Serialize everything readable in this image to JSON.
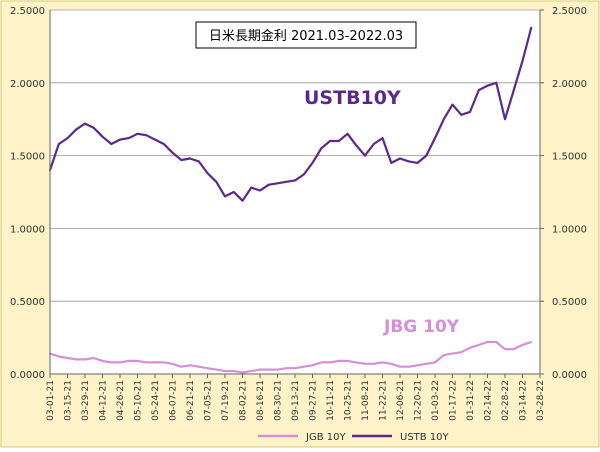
{
  "chart_data": {
    "type": "line",
    "title": "日米長期金利 2021.03-2022.03",
    "annotations": [
      {
        "text": "USTB10Y",
        "series": "USTB 10Y"
      },
      {
        "text": "JBG 10Y",
        "series": "JGB 10Y"
      }
    ],
    "ylim": [
      0,
      2.5
    ],
    "yticks": [
      "0.0000",
      "0.5000",
      "1.0000",
      "1.5000",
      "2.0000",
      "2.5000"
    ],
    "yticks_right": [
      "0.0000",
      "0.5000",
      "1.0000",
      "1.5000",
      "2.0000",
      "2.5000"
    ],
    "xticks": [
      "03-01-21",
      "03-15-21",
      "03-29-21",
      "04-12-21",
      "04-26-21",
      "05-10-21",
      "05-24-21",
      "06-07-21",
      "06-21-21",
      "07-05-21",
      "07-19-21",
      "08-02-21",
      "08-16-21",
      "08-30-21",
      "09-13-21",
      "09-27-21",
      "10-11-21",
      "10-25-21",
      "11-08-21",
      "11-22-21",
      "12-06-21",
      "12-20-21",
      "01-03-22",
      "01-17-22",
      "01-31-22",
      "02-14-22",
      "02-28-22",
      "03-14-22",
      "03-28-22"
    ],
    "grid": true,
    "legend": "bottom",
    "colors": {
      "plot_bg": "#ffffff",
      "frame_bg": "#fdf2c8",
      "frame_border": "#d9c96a",
      "grid": "#999999",
      "ust": "#5b2a86",
      "jgb": "#d48fd6"
    },
    "x": [
      "03-01-21",
      "03-08-21",
      "03-15-21",
      "03-22-21",
      "03-29-21",
      "04-05-21",
      "04-12-21",
      "04-19-21",
      "04-26-21",
      "05-03-21",
      "05-10-21",
      "05-17-21",
      "05-24-21",
      "05-31-21",
      "06-07-21",
      "06-14-21",
      "06-21-21",
      "06-28-21",
      "07-05-21",
      "07-12-21",
      "07-19-21",
      "07-26-21",
      "08-02-21",
      "08-09-21",
      "08-16-21",
      "08-23-21",
      "08-30-21",
      "09-06-21",
      "09-13-21",
      "09-20-21",
      "09-27-21",
      "10-04-21",
      "10-11-21",
      "10-18-21",
      "10-25-21",
      "11-01-21",
      "11-08-21",
      "11-15-21",
      "11-22-21",
      "11-29-21",
      "12-06-21",
      "12-13-21",
      "12-20-21",
      "12-27-21",
      "01-03-22",
      "01-10-22",
      "01-17-22",
      "01-24-22",
      "01-31-22",
      "02-07-22",
      "02-14-22",
      "02-21-22",
      "02-28-22",
      "03-07-22",
      "03-14-22",
      "03-21-22"
    ],
    "series": [
      {
        "name": "JGB 10Y",
        "color": "#d48fd6",
        "values": [
          0.14,
          0.12,
          0.11,
          0.1,
          0.1,
          0.11,
          0.09,
          0.08,
          0.08,
          0.09,
          0.09,
          0.08,
          0.08,
          0.08,
          0.07,
          0.05,
          0.06,
          0.05,
          0.04,
          0.03,
          0.02,
          0.02,
          0.01,
          0.02,
          0.03,
          0.03,
          0.03,
          0.04,
          0.04,
          0.05,
          0.06,
          0.08,
          0.08,
          0.09,
          0.09,
          0.08,
          0.07,
          0.07,
          0.08,
          0.07,
          0.05,
          0.05,
          0.06,
          0.07,
          0.08,
          0.13,
          0.14,
          0.15,
          0.18,
          0.2,
          0.22,
          0.22,
          0.17,
          0.17,
          0.2,
          0.22
        ]
      },
      {
        "name": "USTB 10Y",
        "color": "#5b2a86",
        "values": [
          1.4,
          1.58,
          1.62,
          1.68,
          1.72,
          1.69,
          1.63,
          1.58,
          1.61,
          1.62,
          1.65,
          1.64,
          1.61,
          1.58,
          1.52,
          1.47,
          1.48,
          1.46,
          1.38,
          1.32,
          1.22,
          1.25,
          1.19,
          1.28,
          1.26,
          1.3,
          1.31,
          1.32,
          1.33,
          1.37,
          1.45,
          1.55,
          1.6,
          1.6,
          1.65,
          1.57,
          1.5,
          1.58,
          1.62,
          1.45,
          1.48,
          1.46,
          1.45,
          1.5,
          1.62,
          1.75,
          1.85,
          1.78,
          1.8,
          1.95,
          1.98,
          2.0,
          1.75,
          1.95,
          2.15,
          2.38
        ]
      }
    ],
    "legend_entries": [
      "JGB 10Y",
      "USTB 10Y"
    ]
  }
}
